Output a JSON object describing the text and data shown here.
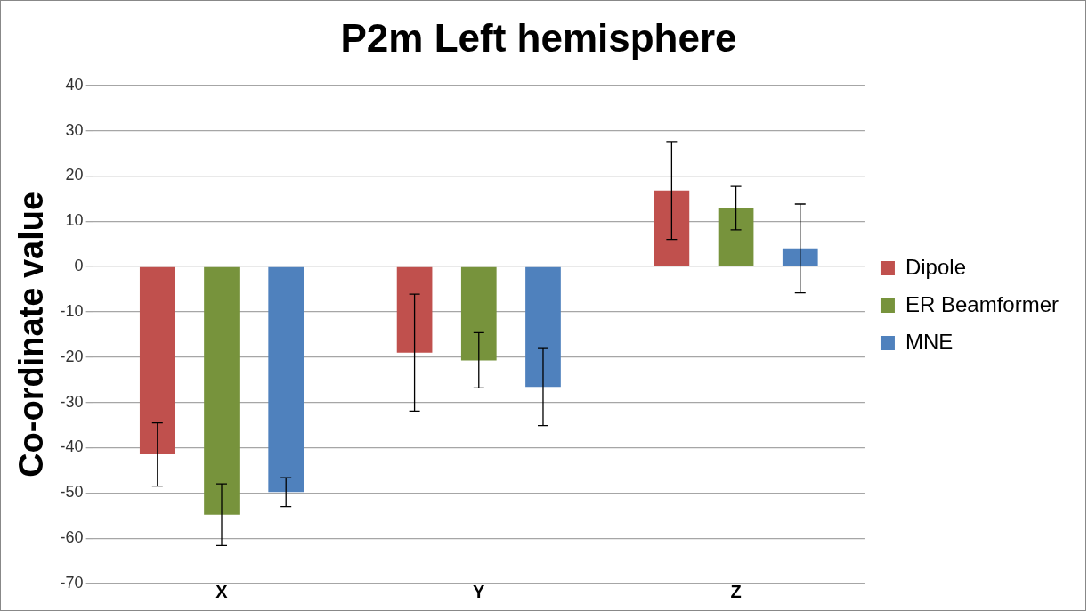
{
  "chart_data": {
    "type": "bar",
    "title": "P2m Left hemisphere",
    "ylabel": "Co-ordinate value",
    "categories": [
      "X",
      "Y",
      "Z"
    ],
    "series": [
      {
        "name": "Dipole",
        "color": "#c0504d",
        "values": [
          -41.5,
          -19.0,
          16.8
        ],
        "errors": [
          7.0,
          12.9,
          10.8
        ]
      },
      {
        "name": "ER Beamformer",
        "color": "#77933c",
        "values": [
          -54.8,
          -20.7,
          12.9
        ],
        "errors": [
          6.8,
          6.1,
          4.8
        ]
      },
      {
        "name": "MNE",
        "color": "#4f81bd",
        "values": [
          -49.8,
          -26.6,
          4.0
        ],
        "errors": [
          3.2,
          8.5,
          9.8
        ]
      }
    ],
    "ylim": [
      -70,
      40
    ],
    "yticks": [
      -70,
      -60,
      -50,
      -40,
      -30,
      -20,
      -10,
      0,
      10,
      20,
      30,
      40
    ],
    "grid": "y",
    "legend": "right"
  }
}
